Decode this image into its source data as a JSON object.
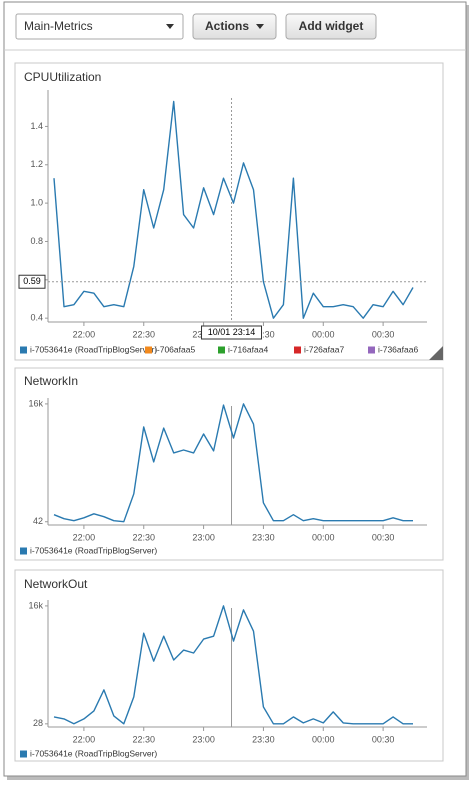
{
  "toolbar": {
    "dashboard": "Main-Metrics",
    "actions": "Actions",
    "add_widget": "Add widget"
  },
  "chart_data": [
    {
      "type": "line",
      "title": "CPUUtilization",
      "x": [
        "21:45",
        "21:50",
        "21:55",
        "22:00",
        "22:05",
        "22:10",
        "22:15",
        "22:20",
        "22:25",
        "22:30",
        "22:35",
        "22:40",
        "22:45",
        "22:50",
        "22:55",
        "23:00",
        "23:05",
        "23:10",
        "23:15",
        "23:20",
        "23:25",
        "23:30",
        "23:35",
        "23:40",
        "23:45",
        "23:50",
        "23:55",
        "00:00",
        "00:05",
        "00:10",
        "00:15",
        "00:20",
        "00:25",
        "00:30",
        "00:35",
        "00:40",
        "00:45"
      ],
      "xlim": [
        "21:42",
        "00:52"
      ],
      "xticks": [
        "22:00",
        "22:30",
        "23:00",
        "23:30",
        "00:00",
        "00:30"
      ],
      "ylim": [
        0.38,
        1.59
      ],
      "yticks": [
        0.4,
        0.6,
        0.8,
        {
          "value": 1,
          "label": "1.0"
        },
        1.2,
        1.4
      ],
      "series": [
        {
          "name": "i-7053641e (RoadTripBlogServer)",
          "color": "#2a7ab0",
          "values": [
            1.13,
            0.46,
            0.47,
            0.54,
            0.53,
            0.46,
            0.47,
            0.46,
            0.67,
            1.07,
            0.87,
            1.07,
            1.53,
            0.94,
            0.87,
            1.08,
            0.94,
            1.13,
            1.0,
            1.21,
            1.07,
            0.59,
            0.4,
            0.47,
            1.13,
            0.4,
            0.53,
            0.46,
            0.46,
            0.47,
            0.46,
            0.4,
            0.47,
            0.46,
            0.54,
            0.47,
            0.56
          ]
        }
      ],
      "legend_only": [
        {
          "name": "i-706afaa5",
          "color": "#f28a1e"
        },
        {
          "name": "i-716afaa4",
          "color": "#2ca02c"
        },
        {
          "name": "i-726afaa7",
          "color": "#d62728"
        },
        {
          "name": "i-736afaa6",
          "color": "#9467bd"
        }
      ],
      "cursor": {
        "x_label": "10/01 23:14",
        "y": 0.59
      }
    },
    {
      "type": "line",
      "title": "NetworkIn",
      "x": [
        "21:45",
        "21:50",
        "21:55",
        "22:00",
        "22:05",
        "22:10",
        "22:15",
        "22:20",
        "22:25",
        "22:30",
        "22:35",
        "22:40",
        "22:45",
        "22:50",
        "22:55",
        "23:00",
        "23:05",
        "23:10",
        "23:15",
        "23:20",
        "23:25",
        "23:30",
        "23:35",
        "23:40",
        "23:45",
        "23:50",
        "23:55",
        "00:00",
        "00:05",
        "00:10",
        "00:15",
        "00:20",
        "00:25",
        "00:30",
        "00:35",
        "00:40",
        "00:45"
      ],
      "xlim": [
        "21:42",
        "00:52"
      ],
      "xticks": [
        "22:00",
        "22:30",
        "23:00",
        "23:30",
        "00:00",
        "00:30"
      ],
      "ylim": [
        -400,
        16800
      ],
      "yticks": [
        42,
        {
          "value": 16000,
          "label": "16k"
        }
      ],
      "series": [
        {
          "name": "i-7053641e (RoadTripBlogServer)",
          "color": "#2a7ab0",
          "values": [
            1000,
            450,
            180,
            580,
            1120,
            720,
            180,
            42,
            3820,
            12870,
            8140,
            12730,
            9360,
            9760,
            9360,
            11920,
            9630,
            15840,
            11380,
            16000,
            13270,
            2610,
            180,
            180,
            990,
            180,
            450,
            180,
            180,
            180,
            180,
            180,
            180,
            180,
            580,
            180,
            180
          ]
        }
      ]
    },
    {
      "type": "line",
      "title": "NetworkOut",
      "x": [
        "21:45",
        "21:50",
        "21:55",
        "22:00",
        "22:05",
        "22:10",
        "22:15",
        "22:20",
        "22:25",
        "22:30",
        "22:35",
        "22:40",
        "22:45",
        "22:50",
        "22:55",
        "23:00",
        "23:05",
        "23:10",
        "23:15",
        "23:20",
        "23:25",
        "23:30",
        "23:35",
        "23:40",
        "23:45",
        "23:50",
        "23:55",
        "00:00",
        "00:05",
        "00:10",
        "00:15",
        "00:20",
        "00:25",
        "00:30",
        "00:35",
        "00:40",
        "00:45"
      ],
      "xlim": [
        "21:42",
        "00:52"
      ],
      "xticks": [
        "22:00",
        "22:30",
        "23:00",
        "23:30",
        "00:00",
        "00:30"
      ],
      "ylim": [
        -400,
        16800
      ],
      "yticks": [
        28,
        {
          "value": 16000,
          "label": "16k"
        }
      ],
      "series": [
        {
          "name": "i-7053641e (RoadTripBlogServer)",
          "color": "#2a7ab0",
          "values": [
            970,
            700,
            28,
            700,
            1780,
            4620,
            1110,
            28,
            3670,
            12310,
            8530,
            11900,
            8670,
            10020,
            9620,
            11500,
            11900,
            16000,
            11230,
            15460,
            12580,
            2320,
            28,
            28,
            970,
            160,
            700,
            160,
            1650,
            160,
            28,
            28,
            28,
            28,
            970,
            28,
            28
          ]
        }
      ]
    }
  ]
}
